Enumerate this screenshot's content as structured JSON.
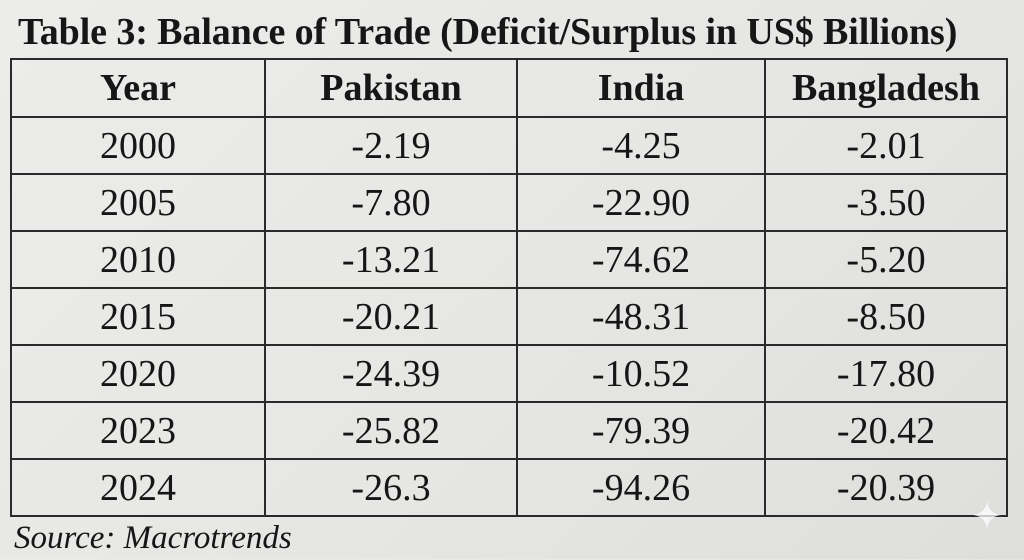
{
  "title": "Table 3: Balance of Trade (Deficit/Surplus in US$ Billions)",
  "table": {
    "headers": [
      "Year",
      "Pakistan",
      "India",
      "Bangladesh"
    ],
    "rows": [
      [
        "2000",
        "-2.19",
        "-4.25",
        "-2.01"
      ],
      [
        "2005",
        "-7.80",
        "-22.90",
        "-3.50"
      ],
      [
        "2010",
        "-13.21",
        "-74.62",
        "-5.20"
      ],
      [
        "2015",
        "-20.21",
        "-48.31",
        "-8.50"
      ],
      [
        "2020",
        "-24.39",
        "-10.52",
        "-17.80"
      ],
      [
        "2023",
        "-25.82",
        "-79.39",
        "-20.42"
      ],
      [
        "2024",
        "-26.3",
        "-94.26",
        "-20.39"
      ]
    ]
  },
  "source": "Source: Macrotrends",
  "icons": {
    "corner": "sparkle-icon"
  }
}
